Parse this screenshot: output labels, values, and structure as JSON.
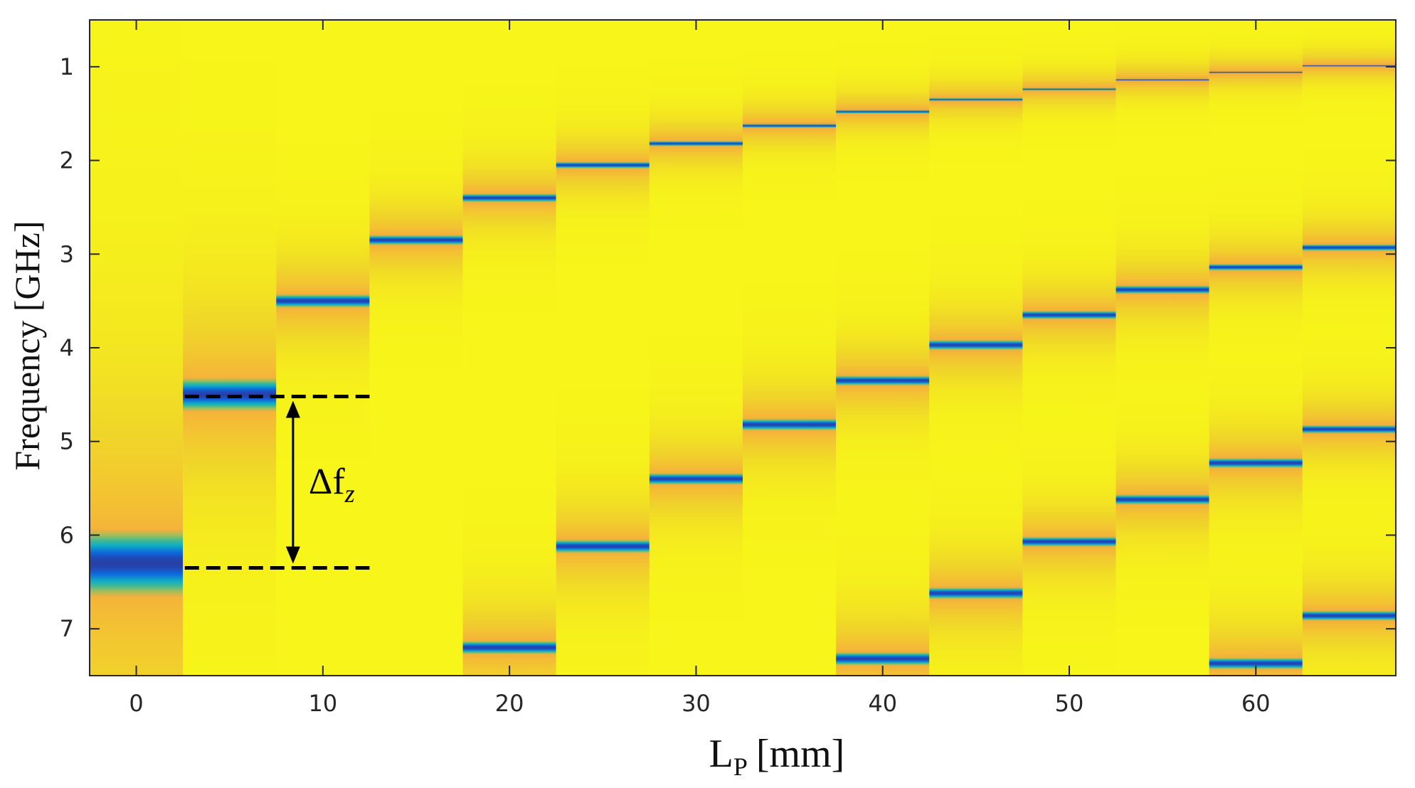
{
  "chart_data": {
    "type": "heatmap",
    "title": "",
    "xlabel": {
      "main": "L",
      "sub": "P",
      "unit": "[mm]"
    },
    "ylabel": "Frequency [GHz]",
    "xlim": [
      -2.5,
      67.5
    ],
    "ylim": [
      7.5,
      0.5
    ],
    "y_axis_inverted": true,
    "xticks": [
      0,
      10,
      20,
      30,
      40,
      50,
      60
    ],
    "yticks": [
      1,
      2,
      3,
      4,
      5,
      6,
      7
    ],
    "column_width_mm": 5,
    "colormap": "parula",
    "background_color": "#f7f519",
    "series": [
      {
        "Lp": 0,
        "resonances_GHz": [
          6.3
        ],
        "widths_GHz": [
          0.2
        ]
      },
      {
        "Lp": 5,
        "resonances_GHz": [
          4.5
        ],
        "widths_GHz": [
          0.1
        ]
      },
      {
        "Lp": 10,
        "resonances_GHz": [
          3.5
        ],
        "widths_GHz": [
          0.04
        ]
      },
      {
        "Lp": 15,
        "resonances_GHz": [
          2.85
        ],
        "widths_GHz": [
          0.03
        ]
      },
      {
        "Lp": 20,
        "resonances_GHz": [
          2.4,
          7.2
        ],
        "widths_GHz": [
          0.025,
          0.04
        ]
      },
      {
        "Lp": 25,
        "resonances_GHz": [
          2.05,
          6.12
        ],
        "widths_GHz": [
          0.02,
          0.04
        ]
      },
      {
        "Lp": 30,
        "resonances_GHz": [
          1.82,
          5.4
        ],
        "widths_GHz": [
          0.015,
          0.035
        ]
      },
      {
        "Lp": 35,
        "resonances_GHz": [
          1.63,
          4.82
        ],
        "widths_GHz": [
          0.012,
          0.035
        ]
      },
      {
        "Lp": 40,
        "resonances_GHz": [
          1.48,
          4.35,
          7.32
        ],
        "widths_GHz": [
          0.01,
          0.03,
          0.04
        ]
      },
      {
        "Lp": 45,
        "resonances_GHz": [
          1.35,
          3.97,
          6.62
        ],
        "widths_GHz": [
          0.008,
          0.03,
          0.035
        ]
      },
      {
        "Lp": 50,
        "resonances_GHz": [
          1.24,
          3.65,
          6.07
        ],
        "widths_GHz": [
          0.007,
          0.025,
          0.03
        ]
      },
      {
        "Lp": 55,
        "resonances_GHz": [
          1.14,
          3.38,
          5.62
        ],
        "widths_GHz": [
          0.006,
          0.025,
          0.03
        ]
      },
      {
        "Lp": 60,
        "resonances_GHz": [
          1.06,
          3.14,
          5.23,
          7.37
        ],
        "widths_GHz": [
          0.005,
          0.02,
          0.03,
          0.035
        ]
      },
      {
        "Lp": 65,
        "resonances_GHz": [
          0.99,
          2.93,
          4.87,
          6.86
        ],
        "widths_GHz": [
          0.004,
          0.02,
          0.025,
          0.03
        ]
      }
    ],
    "annotation": {
      "label_main": "Δf",
      "label_sub": "z",
      "from_GHz": 4.52,
      "to_GHz": 6.35,
      "x_start_mm": 2.6,
      "x_end_mm": 12.5,
      "arrow_x_mm": 8.4
    }
  }
}
